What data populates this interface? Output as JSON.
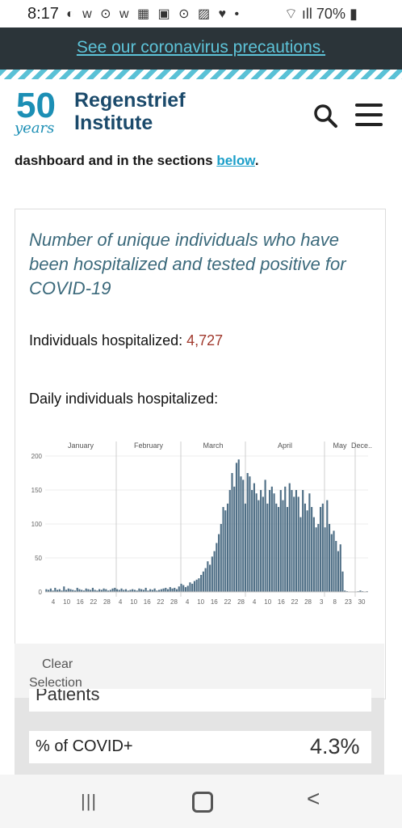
{
  "status_bar": {
    "time": "8:17",
    "icons": "◐ w ⊙ w ▦ ▣ ⊙ ▨ ♥ •",
    "right": "⌔ ıll 70% ▮",
    "battery": "70%"
  },
  "banner": {
    "link_text": "See our coronavirus precautions."
  },
  "header": {
    "logo_number": "50",
    "logo_years": "years",
    "logo_line1": "Regenstrief",
    "logo_line2": "Institute"
  },
  "intro": {
    "text_prefix": "dashboard and in the sections ",
    "link_text": "below",
    "text_suffix": "."
  },
  "card": {
    "title": "Number of unique individuals who have been hospitalized and tested positive for COVID-19",
    "hospitalized_label": "Individuals hospitalized: ",
    "hospitalized_value": "4,727",
    "daily_label": "Daily individuals hospitalized:"
  },
  "chart_data": {
    "type": "bar",
    "months": [
      "January",
      "February",
      "March",
      "April",
      "May",
      "Dece.."
    ],
    "y_ticks": [
      "200",
      "150",
      "100",
      "50",
      "0"
    ],
    "x_ticks": [
      "4",
      "10",
      "16",
      "22",
      "28",
      "4",
      "10",
      "16",
      "22",
      "28",
      "4",
      "10",
      "16",
      "22",
      "28",
      "4",
      "10",
      "16",
      "22",
      "28",
      "3",
      "8",
      "23",
      "30"
    ],
    "ylim": [
      0,
      200
    ],
    "values": [
      4,
      3,
      5,
      2,
      6,
      3,
      4,
      2,
      8,
      3,
      5,
      4,
      3,
      2,
      6,
      4,
      3,
      2,
      5,
      4,
      3,
      6,
      3,
      2,
      4,
      3,
      5,
      4,
      2,
      3,
      5,
      6,
      4,
      3,
      5,
      3,
      4,
      2,
      3,
      4,
      3,
      2,
      5,
      4,
      3,
      6,
      2,
      4,
      3,
      5,
      2,
      3,
      4,
      5,
      6,
      4,
      7,
      5,
      6,
      4,
      8,
      12,
      10,
      7,
      9,
      14,
      12,
      16,
      18,
      20,
      25,
      30,
      35,
      45,
      40,
      52,
      60,
      72,
      85,
      100,
      125,
      120,
      130,
      150,
      175,
      155,
      190,
      195,
      170,
      165,
      130,
      175,
      170,
      150,
      160,
      145,
      135,
      150,
      140,
      165,
      130,
      150,
      155,
      145,
      130,
      125,
      150,
      135,
      155,
      125,
      160,
      150,
      140,
      150,
      140,
      110,
      150,
      130,
      120,
      145,
      125,
      110,
      95,
      100,
      125,
      130,
      95,
      135,
      100,
      85,
      90,
      75,
      60,
      70,
      30,
      2,
      1,
      0,
      0,
      0,
      0,
      1,
      2,
      1,
      0,
      1
    ],
    "grid": true,
    "legend": "none"
  },
  "clear_selection": {
    "label_line1": "Clear",
    "label_line2": "Selection"
  },
  "lower": {
    "patients_label": "Patients",
    "pct_label": "% of COVID+",
    "pct_value": "4.3%"
  },
  "navbar": {
    "recent_glyph": "|||",
    "back_glyph": "<"
  }
}
